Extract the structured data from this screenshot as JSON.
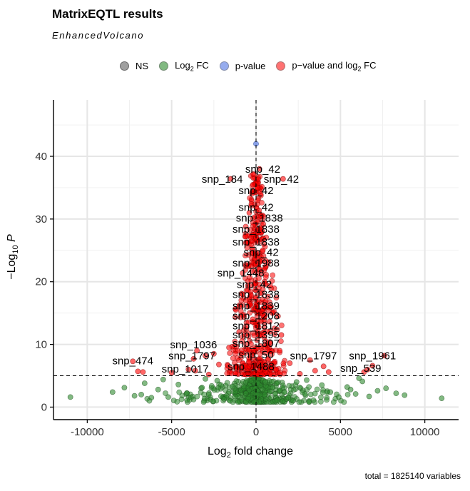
{
  "chart_data": {
    "type": "scatter",
    "title": "MatrixEQTL results",
    "subtitle": "EnhancedVolcano",
    "caption": "total = 1825140 variables",
    "xlabel_prefix": "Log",
    "xlabel_sub": "2",
    "xlabel_suffix": " fold change",
    "ylabel_prefix": "−Log",
    "ylabel_sub": "10",
    "ylabel_var": "P",
    "xlim": [
      -12000,
      12000
    ],
    "ylim": [
      -2,
      49
    ],
    "x_ticks": [
      -10000,
      -5000,
      0,
      5000,
      10000
    ],
    "x_tick_labels": [
      "-10000",
      "-5000",
      "0",
      "5000",
      "10000"
    ],
    "y_ticks": [
      0,
      10,
      20,
      30,
      40
    ],
    "y_tick_labels": [
      "0",
      "10",
      "20",
      "30",
      "40"
    ],
    "grid": true,
    "legend_position": "top",
    "cutoffs": {
      "x": 0,
      "y": 5
    },
    "colors": {
      "NS": "#7f7f7f",
      "FC": "#2e8b2e",
      "P": "#4169e1",
      "PFC": "#ff0000"
    },
    "legend": [
      {
        "key": "NS",
        "label": "NS",
        "color": "#7f7f7f"
      },
      {
        "key": "FC",
        "label_prefix": "Log",
        "label_sub": "2",
        "label_suffix": " FC",
        "color": "#2e8b2e"
      },
      {
        "key": "P",
        "label": "p-value",
        "color": "#4169e1"
      },
      {
        "key": "PFC",
        "label_prefix": "p−value and log",
        "label_sub": "2",
        "label_suffix": " FC",
        "color": "#ff0000"
      }
    ],
    "series": [
      {
        "name": "p-value",
        "key": "P",
        "points": [
          [
            0,
            42
          ]
        ]
      },
      {
        "name": "p−value and log2 FC",
        "key": "PFC",
        "points": [
          [
            200,
            38
          ],
          [
            -1500,
            36.4
          ],
          [
            1600,
            36.4
          ],
          [
            100,
            33
          ],
          [
            300,
            30.5
          ],
          [
            250,
            28.5
          ],
          [
            -300,
            27
          ],
          [
            400,
            25
          ],
          [
            -600,
            22.5
          ],
          [
            500,
            20
          ],
          [
            -100,
            19.5
          ],
          [
            -600,
            17
          ],
          [
            -1200,
            15.5
          ],
          [
            1300,
            14.5
          ],
          [
            -1000,
            12
          ],
          [
            1500,
            11.5
          ],
          [
            -1600,
            9.5
          ],
          [
            1400,
            9.0
          ],
          [
            -3500,
            9.0
          ],
          [
            -3000,
            8.2
          ],
          [
            -2500,
            8.5
          ],
          [
            -3700,
            7.7
          ],
          [
            2000,
            7.0
          ],
          [
            3200,
            7.5
          ],
          [
            4000,
            6.5
          ],
          [
            -2200,
            6.8
          ],
          [
            -4000,
            6.0
          ],
          [
            -3600,
            5.8
          ],
          [
            -1500,
            6.2
          ],
          [
            1200,
            6.0
          ],
          [
            3500,
            5.8
          ],
          [
            4300,
            5.6
          ],
          [
            -7300,
            7.3
          ],
          [
            -7000,
            5.7
          ],
          [
            -6700,
            5.6
          ],
          [
            7600,
            8.2
          ],
          [
            6900,
            6.6
          ],
          [
            6600,
            6.0
          ],
          [
            6400,
            5.6
          ],
          [
            -5000,
            5.5
          ],
          [
            -2800,
            5.2
          ],
          [
            2600,
            5.3
          ],
          [
            -200,
            14
          ],
          [
            200,
            22
          ],
          [
            0,
            27
          ],
          [
            -400,
            31
          ],
          [
            100,
            35
          ],
          [
            -800,
            18
          ]
        ]
      },
      {
        "name": "Log2 FC",
        "key": "FC",
        "points": [
          [
            -11000,
            1.6
          ],
          [
            11000,
            1.4
          ],
          [
            -7800,
            3.1
          ],
          [
            -7200,
            1.8
          ],
          [
            -6800,
            2.0
          ],
          [
            -6200,
            1.5
          ],
          [
            -5800,
            2.8
          ],
          [
            -5200,
            1.6
          ],
          [
            -4600,
            3.6
          ],
          [
            -4100,
            2.2
          ],
          [
            -3700,
            1.2
          ],
          [
            -3200,
            3.1
          ],
          [
            -2800,
            2.0
          ],
          [
            -2300,
            4.2
          ],
          [
            -1900,
            1.3
          ],
          [
            -1400,
            3.3
          ],
          [
            1400,
            2.7
          ],
          [
            1900,
            1.5
          ],
          [
            2400,
            4.0
          ],
          [
            2900,
            2.1
          ],
          [
            3400,
            1.1
          ],
          [
            3900,
            3.5
          ],
          [
            4400,
            2.4
          ],
          [
            4900,
            1.6
          ],
          [
            5400,
            3.2
          ],
          [
            5900,
            2.1
          ],
          [
            6300,
            4.1
          ],
          [
            6700,
            1.7
          ],
          [
            7200,
            2.6
          ],
          [
            7700,
            3.0
          ],
          [
            8300,
            2.2
          ],
          [
            -6600,
            3.8
          ],
          [
            -5500,
            4.4
          ],
          [
            6100,
            4.6
          ],
          [
            5600,
            2.8
          ],
          [
            -3000,
            4.5
          ],
          [
            3000,
            4.3
          ],
          [
            -8500,
            2.4
          ],
          [
            8800,
            1.9
          ]
        ]
      }
    ],
    "labels": [
      {
        "text": "snp_42",
        "x": 400,
        "y": 37.4
      },
      {
        "text": "snp_184",
        "x": -2000,
        "y": 35.8
      },
      {
        "text": "snp_42",
        "x": 1500,
        "y": 35.8
      },
      {
        "text": "snp_42",
        "x": 0,
        "y": 34.0
      },
      {
        "text": "snp_42",
        "x": 0,
        "y": 31.3
      },
      {
        "text": "snp_1838",
        "x": 200,
        "y": 29.6
      },
      {
        "text": "snp_1838",
        "x": 0,
        "y": 27.8
      },
      {
        "text": "snp_1838",
        "x": 0,
        "y": 25.8
      },
      {
        "text": "snp_42",
        "x": 300,
        "y": 24.1
      },
      {
        "text": "snp_1988",
        "x": 0,
        "y": 22.4
      },
      {
        "text": "snp_1448",
        "x": -900,
        "y": 20.8
      },
      {
        "text": "snp_42",
        "x": -100,
        "y": 19.0
      },
      {
        "text": "snp_1838",
        "x": 0,
        "y": 17.4
      },
      {
        "text": "snp_1839",
        "x": 0,
        "y": 15.6
      },
      {
        "text": "snp_1208",
        "x": 0,
        "y": 14.0
      },
      {
        "text": "snp_1812",
        "x": 0,
        "y": 12.4
      },
      {
        "text": "snp_1395",
        "x": 0,
        "y": 11.0
      },
      {
        "text": "snp_1807",
        "x": 0,
        "y": 9.6
      },
      {
        "text": "snp_1036",
        "x": -3700,
        "y": 9.4
      },
      {
        "text": "snp_474",
        "x": -7300,
        "y": 6.8
      },
      {
        "text": "snp_1797",
        "x": -3800,
        "y": 7.6
      },
      {
        "text": "snp_50",
        "x": 0,
        "y": 7.8
      },
      {
        "text": "snp_1797",
        "x": 3400,
        "y": 7.6
      },
      {
        "text": "snp_1961",
        "x": 6900,
        "y": 7.6
      },
      {
        "text": "snp_1017",
        "x": -4200,
        "y": 5.5
      },
      {
        "text": "snp_1488",
        "x": -300,
        "y": 5.9
      },
      {
        "text": "snp_539",
        "x": 6200,
        "y": 5.6
      }
    ]
  }
}
